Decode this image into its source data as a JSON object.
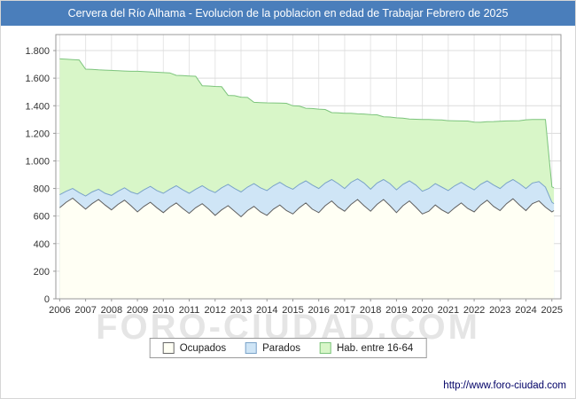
{
  "title": "Cervera del Río Alhama - Evolucion de la poblacion en edad de Trabajar Febrero de 2025",
  "watermark": "FORO-CIUDAD.COM",
  "footer": {
    "url": "http://www.foro-ciudad.com"
  },
  "colors": {
    "title_bar": "#4a7ebb",
    "grid": "#dcdcdc",
    "plot_border": "#999999",
    "axis_text": "#333333"
  },
  "legend": {
    "items": [
      {
        "label": "Ocupados",
        "fill": "#fffff4",
        "stroke": "#666666"
      },
      {
        "label": "Parados",
        "fill": "#cfe5f6",
        "stroke": "#7aa3c8"
      },
      {
        "label": "Hab. entre 16-64",
        "fill": "#d8f6c8",
        "stroke": "#7cc47c"
      }
    ]
  },
  "chart_data": {
    "type": "area",
    "title": "Cervera del Río Alhama - Evolucion de la poblacion en edad de Trabajar Febrero de 2025",
    "xlabel": "",
    "ylabel": "",
    "xlim": [
      2005.85,
      2025.35
    ],
    "ylim": [
      0,
      1916
    ],
    "grid": true,
    "legend_position": "bottom",
    "y_ticks": [
      {
        "v": 0,
        "label": "0"
      },
      {
        "v": 200,
        "label": "200"
      },
      {
        "v": 400,
        "label": "400"
      },
      {
        "v": 600,
        "label": "600"
      },
      {
        "v": 800,
        "label": "800"
      },
      {
        "v": 1000,
        "label": "1.000"
      },
      {
        "v": 1200,
        "label": "1.200"
      },
      {
        "v": 1400,
        "label": "1.400"
      },
      {
        "v": 1600,
        "label": "1.600"
      },
      {
        "v": 1800,
        "label": "1.800"
      }
    ],
    "x_ticks": [
      {
        "v": 2006,
        "label": "2006"
      },
      {
        "v": 2007,
        "label": "2007"
      },
      {
        "v": 2008,
        "label": "2008"
      },
      {
        "v": 2009,
        "label": "2009"
      },
      {
        "v": 2010,
        "label": "2010"
      },
      {
        "v": 2011,
        "label": "2011"
      },
      {
        "v": 2012,
        "label": "2012"
      },
      {
        "v": 2013,
        "label": "2013"
      },
      {
        "v": 2014,
        "label": "2014"
      },
      {
        "v": 2015,
        "label": "2015"
      },
      {
        "v": 2016,
        "label": "2016"
      },
      {
        "v": 2017,
        "label": "2017"
      },
      {
        "v": 2018,
        "label": "2018"
      },
      {
        "v": 2019,
        "label": "2019"
      },
      {
        "v": 2020,
        "label": "2020"
      },
      {
        "v": 2021,
        "label": "2021"
      },
      {
        "v": 2022,
        "label": "2022"
      },
      {
        "v": 2023,
        "label": "2023"
      },
      {
        "v": 2024,
        "label": "2024"
      },
      {
        "v": 2025,
        "label": "2025"
      }
    ],
    "x": [
      2006.0,
      2006.25,
      2006.5,
      2006.75,
      2007.0,
      2007.25,
      2007.5,
      2007.75,
      2008.0,
      2008.25,
      2008.5,
      2008.75,
      2009.0,
      2009.25,
      2009.5,
      2009.75,
      2010.0,
      2010.25,
      2010.5,
      2010.75,
      2011.0,
      2011.25,
      2011.5,
      2011.75,
      2012.0,
      2012.25,
      2012.5,
      2012.75,
      2013.0,
      2013.25,
      2013.5,
      2013.75,
      2014.0,
      2014.25,
      2014.5,
      2014.75,
      2015.0,
      2015.25,
      2015.5,
      2015.75,
      2016.0,
      2016.25,
      2016.5,
      2016.75,
      2017.0,
      2017.25,
      2017.5,
      2017.75,
      2018.0,
      2018.25,
      2018.5,
      2018.75,
      2019.0,
      2019.25,
      2019.5,
      2019.75,
      2020.0,
      2020.25,
      2020.5,
      2020.75,
      2021.0,
      2021.25,
      2021.5,
      2021.75,
      2022.0,
      2022.25,
      2022.5,
      2022.75,
      2023.0,
      2023.25,
      2023.5,
      2023.75,
      2024.0,
      2024.25,
      2024.5,
      2024.75,
      2025.0,
      2025.08
    ],
    "series": [
      {
        "name": "Hab. entre 16-64",
        "fill": "#d8f6c8",
        "stroke": "#7cc47c",
        "values": [
          1740,
          1738,
          1735,
          1732,
          1665,
          1663,
          1660,
          1658,
          1656,
          1654,
          1652,
          1650,
          1650,
          1648,
          1645,
          1643,
          1640,
          1638,
          1620,
          1618,
          1616,
          1614,
          1545,
          1543,
          1540,
          1538,
          1475,
          1473,
          1462,
          1460,
          1425,
          1423,
          1421,
          1420,
          1419,
          1418,
          1400,
          1398,
          1382,
          1380,
          1375,
          1373,
          1350,
          1348,
          1346,
          1345,
          1341,
          1340,
          1336,
          1334,
          1320,
          1318,
          1312,
          1310,
          1304,
          1302,
          1300,
          1300,
          1298,
          1297,
          1292,
          1291,
          1290,
          1289,
          1281,
          1280,
          1284,
          1285,
          1288,
          1290,
          1291,
          1292,
          1298,
          1300,
          1300,
          1300,
          812,
          805
        ]
      },
      {
        "name": "Parados",
        "fill": "#cfe5f6",
        "stroke": "#7aa3c8",
        "values": [
          755,
          780,
          800,
          770,
          745,
          775,
          795,
          765,
          750,
          780,
          805,
          775,
          760,
          790,
          815,
          785,
          765,
          795,
          820,
          790,
          765,
          795,
          820,
          790,
          770,
          805,
          830,
          800,
          775,
          810,
          835,
          805,
          785,
          820,
          845,
          815,
          795,
          830,
          855,
          825,
          800,
          840,
          865,
          835,
          800,
          845,
          870,
          840,
          795,
          840,
          865,
          835,
          790,
          830,
          855,
          825,
          780,
          800,
          835,
          810,
          785,
          820,
          845,
          815,
          790,
          830,
          855,
          825,
          800,
          840,
          865,
          835,
          800,
          840,
          850,
          810,
          700,
          690
        ]
      },
      {
        "name": "Ocupados",
        "fill": "#fffff4",
        "stroke": "#5f5f5f",
        "values": [
          660,
          700,
          730,
          690,
          650,
          690,
          720,
          680,
          645,
          685,
          715,
          675,
          630,
          670,
          700,
          660,
          625,
          665,
          695,
          655,
          620,
          660,
          690,
          650,
          605,
          645,
          675,
          635,
          595,
          640,
          670,
          630,
          605,
          650,
          680,
          640,
          615,
          660,
          695,
          650,
          625,
          675,
          710,
          665,
          635,
          685,
          720,
          675,
          635,
          685,
          720,
          675,
          625,
          675,
          710,
          665,
          615,
          635,
          680,
          645,
          620,
          660,
          695,
          655,
          630,
          680,
          715,
          670,
          640,
          690,
          725,
          680,
          640,
          690,
          710,
          665,
          630,
          640
        ]
      }
    ]
  }
}
